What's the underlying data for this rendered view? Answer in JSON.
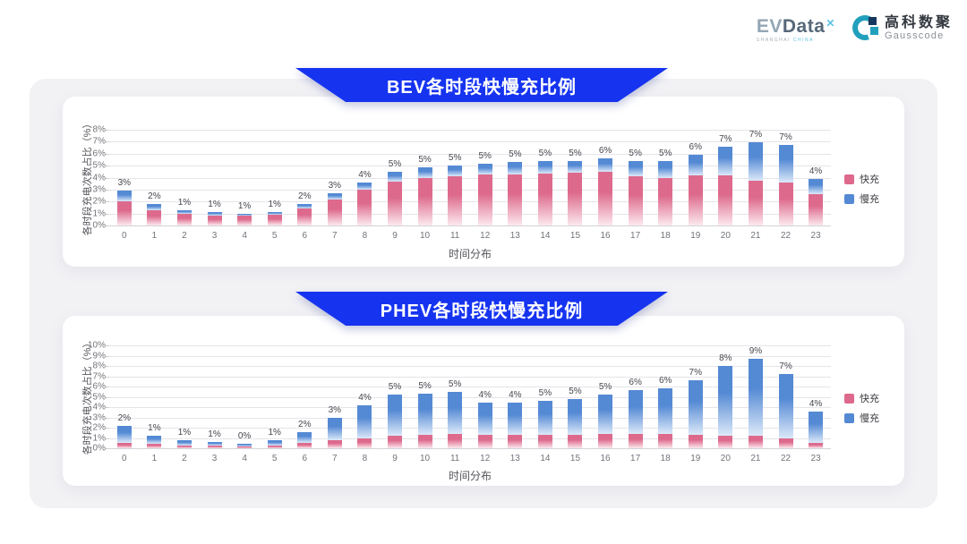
{
  "header": {
    "evdata": {
      "ev": "EV",
      "data": "Data",
      "mark": "✕",
      "sub_left": "SHANGHAI",
      "sub_right": "CHINA"
    },
    "gausscode": {
      "cn": "高科数聚",
      "en": "Gausscode"
    }
  },
  "colors": {
    "banner_blue": "#1634f0",
    "fast_pink": "#dd6a8d",
    "slow_blue": "#5489d4",
    "panel_gray": "#f2f2f5"
  },
  "chart_data": [
    {
      "type": "bar",
      "stacked": true,
      "title": "BEV各时段快慢充比例",
      "xlabel": "时间分布",
      "ylabel": "各时段充电次数占比（%）",
      "ylim": [
        0,
        8
      ],
      "y_tick_step": 1,
      "y_tick_suffix": "%",
      "grid": true,
      "legend_position": "right",
      "categories": [
        "0",
        "1",
        "2",
        "3",
        "4",
        "5",
        "6",
        "7",
        "8",
        "9",
        "10",
        "11",
        "12",
        "13",
        "14",
        "15",
        "16",
        "17",
        "18",
        "19",
        "20",
        "21",
        "22",
        "23"
      ],
      "series": [
        {
          "key": "fast",
          "name": "快充",
          "color": "#dd6a8d",
          "fade": "#fce9ef",
          "values": [
            2.0,
            1.3,
            1.0,
            0.85,
            0.8,
            0.9,
            1.45,
            2.2,
            3.0,
            3.7,
            4.0,
            4.1,
            4.25,
            4.3,
            4.35,
            4.4,
            4.5,
            4.1,
            4.0,
            4.2,
            4.2,
            3.9,
            3.6,
            2.6
          ]
        },
        {
          "key": "slow",
          "name": "慢充",
          "color": "#5489d4",
          "fade": "#dce9f9",
          "values": [
            0.9,
            0.5,
            0.3,
            0.25,
            0.15,
            0.25,
            0.35,
            0.5,
            0.6,
            0.8,
            0.9,
            0.9,
            0.95,
            1.0,
            1.05,
            1.0,
            1.1,
            1.3,
            1.4,
            1.7,
            2.4,
            3.4,
            3.1,
            1.3
          ]
        }
      ],
      "bar_labels": [
        "3%",
        "2%",
        "1%",
        "1%",
        "1%",
        "1%",
        "2%",
        "3%",
        "4%",
        "5%",
        "5%",
        "5%",
        "5%",
        "5%",
        "5%",
        "5%",
        "6%",
        "5%",
        "5%",
        "6%",
        "7%",
        "7%",
        "7%",
        "4%"
      ]
    },
    {
      "type": "bar",
      "stacked": true,
      "title": "PHEV各时段快慢充比例",
      "xlabel": "时间分布",
      "ylabel": "各时段充电次数占比（%）",
      "ylim": [
        0,
        10
      ],
      "y_tick_step": 1,
      "y_tick_suffix": "%",
      "grid": true,
      "legend_position": "right",
      "categories": [
        "0",
        "1",
        "2",
        "3",
        "4",
        "5",
        "6",
        "7",
        "8",
        "9",
        "10",
        "11",
        "12",
        "13",
        "14",
        "15",
        "16",
        "17",
        "18",
        "19",
        "20",
        "21",
        "22",
        "23"
      ],
      "series": [
        {
          "key": "fast",
          "name": "快充",
          "color": "#dd6a8d",
          "fade": "#fce9ef",
          "values": [
            0.5,
            0.4,
            0.3,
            0.25,
            0.2,
            0.3,
            0.5,
            0.8,
            1.0,
            1.2,
            1.35,
            1.4,
            1.35,
            1.35,
            1.3,
            1.3,
            1.4,
            1.4,
            1.4,
            1.3,
            1.2,
            1.2,
            1.0,
            0.5
          ]
        },
        {
          "key": "slow",
          "name": "慢充",
          "color": "#5489d4",
          "fade": "#dce9f9",
          "values": [
            1.7,
            0.8,
            0.5,
            0.35,
            0.25,
            0.45,
            1.1,
            2.2,
            3.2,
            4.0,
            3.95,
            4.1,
            3.05,
            3.05,
            3.3,
            3.5,
            3.8,
            4.3,
            4.4,
            5.3,
            6.8,
            7.5,
            6.2,
            3.1
          ]
        }
      ],
      "bar_labels": [
        "2%",
        "1%",
        "1%",
        "1%",
        "0%",
        "1%",
        "2%",
        "3%",
        "4%",
        "5%",
        "5%",
        "5%",
        "4%",
        "4%",
        "5%",
        "5%",
        "5%",
        "6%",
        "6%",
        "7%",
        "8%",
        "9%",
        "7%",
        "4%"
      ]
    }
  ]
}
